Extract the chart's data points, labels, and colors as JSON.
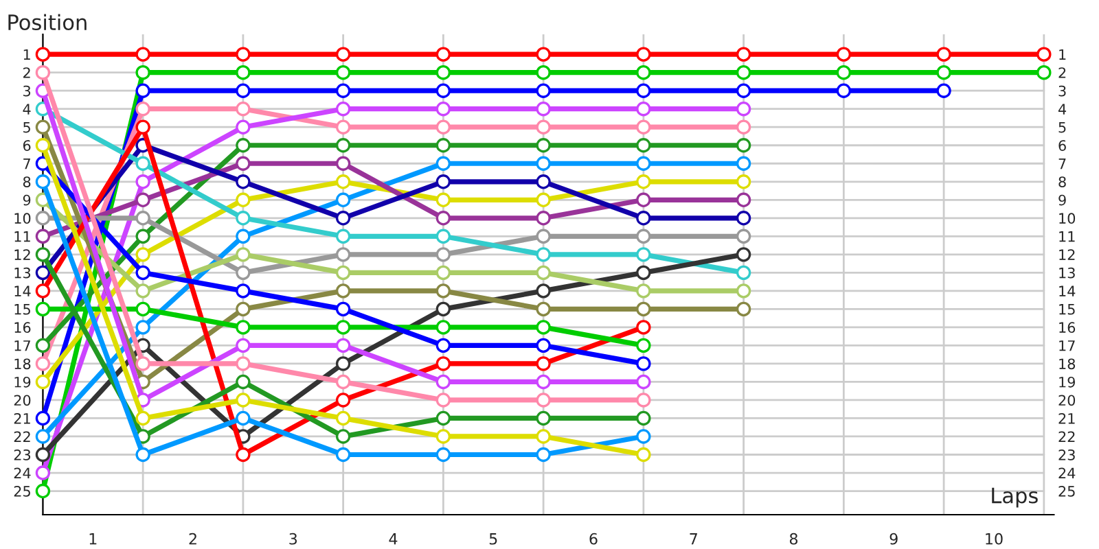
{
  "chart_data": {
    "type": "line",
    "xlabel": "Laps",
    "ylabel": "Position",
    "x": [
      0,
      1,
      2,
      3,
      4,
      5,
      6,
      7,
      8,
      9,
      10
    ],
    "xlim": [
      0,
      10.1
    ],
    "xticks": [
      {
        "value": 0,
        "label": null
      },
      {
        "value": 0.5,
        "label": "1"
      },
      {
        "value": 1,
        "label": null
      },
      {
        "value": 1.5,
        "label": "2"
      },
      {
        "value": 2,
        "label": null
      },
      {
        "value": 2.5,
        "label": "3"
      },
      {
        "value": 3,
        "label": null
      },
      {
        "value": 3.5,
        "label": "4"
      },
      {
        "value": 4,
        "label": null
      },
      {
        "value": 4.5,
        "label": "5"
      },
      {
        "value": 5,
        "label": null
      },
      {
        "value": 5.5,
        "label": "6"
      },
      {
        "value": 6,
        "label": null
      },
      {
        "value": 6.5,
        "label": "7"
      },
      {
        "value": 7,
        "label": null
      },
      {
        "value": 7.5,
        "label": "8"
      },
      {
        "value": 8,
        "label": null
      },
      {
        "value": 8.5,
        "label": "9"
      },
      {
        "value": 9,
        "label": null
      },
      {
        "value": 9.5,
        "label": "10"
      },
      {
        "value": 10,
        "label": null
      }
    ],
    "ylim": [
      26.3,
      -0.1
    ],
    "yticks": [
      1,
      2,
      3,
      4,
      5,
      6,
      7,
      8,
      9,
      10,
      11,
      12,
      13,
      14,
      15,
      16,
      17,
      18,
      19,
      20,
      21,
      22,
      23,
      24,
      25
    ],
    "y2lim": [
      26.3,
      -0.1
    ],
    "y2ticks": [
      1,
      2,
      3,
      4,
      5,
      6,
      7,
      8,
      9,
      10,
      11,
      12,
      13,
      14,
      15,
      16,
      17,
      18,
      19,
      20,
      21,
      22,
      23,
      24,
      25
    ],
    "grid": true,
    "legend": false,
    "marker": "circle",
    "line_style": "solid",
    "series": [
      {
        "color": "#ff0000",
        "values": [
          1,
          1,
          1,
          1,
          1,
          1,
          1,
          1,
          1,
          1,
          1
        ]
      },
      {
        "color": "#00cc00",
        "values": [
          25,
          2,
          2,
          2,
          2,
          2,
          2,
          2,
          2,
          2,
          2
        ]
      },
      {
        "color": "#0000ff",
        "values": [
          21,
          3,
          3,
          3,
          3,
          3,
          3,
          3,
          3,
          3,
          null
        ]
      },
      {
        "color": "#ff88aa",
        "values": [
          18,
          4,
          4,
          5,
          5,
          5,
          5,
          5,
          null,
          null,
          null
        ]
      },
      {
        "color": "#cc44ff",
        "values": [
          24,
          8,
          5,
          4,
          4,
          4,
          4,
          4,
          null,
          null,
          null
        ]
      },
      {
        "color": "#229922",
        "values": [
          17,
          11,
          6,
          6,
          6,
          6,
          6,
          6,
          null,
          null,
          null
        ]
      },
      {
        "color": "#0099ff",
        "values": [
          22,
          16,
          11,
          9,
          7,
          7,
          7,
          7,
          null,
          null,
          null
        ]
      },
      {
        "color": "#dddd00",
        "values": [
          19,
          12,
          9,
          8,
          9,
          9,
          8,
          8,
          null,
          null,
          null
        ]
      },
      {
        "color": "#993399",
        "values": [
          11,
          9,
          7,
          7,
          10,
          10,
          9,
          9,
          null,
          null,
          null
        ]
      },
      {
        "color": "#1100aa",
        "values": [
          13,
          6,
          8,
          10,
          8,
          8,
          10,
          10,
          null,
          null,
          null
        ]
      },
      {
        "color": "#999999",
        "values": [
          10,
          10,
          13,
          12,
          12,
          11,
          11,
          11,
          null,
          null,
          null
        ]
      },
      {
        "color": "#33cccc",
        "values": [
          4,
          7,
          10,
          11,
          11,
          12,
          12,
          13,
          null,
          null,
          null
        ]
      },
      {
        "color": "#333333",
        "values": [
          23,
          17,
          22,
          18,
          15,
          14,
          13,
          12,
          null,
          null,
          null
        ]
      },
      {
        "color": "#aacc66",
        "values": [
          9,
          14,
          12,
          13,
          13,
          13,
          14,
          14,
          null,
          null,
          null
        ]
      },
      {
        "color": "#888844",
        "values": [
          5,
          19,
          15,
          14,
          14,
          15,
          15,
          15,
          null,
          null,
          null
        ]
      },
      {
        "color": "#ff0000",
        "values": [
          14,
          5,
          23,
          20,
          18,
          18,
          16,
          null,
          null,
          null,
          null
        ]
      },
      {
        "color": "#00cc00",
        "values": [
          15,
          15,
          16,
          16,
          16,
          16,
          17,
          null,
          null,
          null,
          null
        ]
      },
      {
        "color": "#0000ff",
        "values": [
          7,
          13,
          14,
          15,
          17,
          17,
          18,
          null,
          null,
          null,
          null
        ]
      },
      {
        "color": "#cc44ff",
        "values": [
          3,
          20,
          17,
          17,
          19,
          19,
          19,
          null,
          null,
          null,
          null
        ]
      },
      {
        "color": "#ff88aa",
        "values": [
          2,
          18,
          18,
          19,
          20,
          20,
          20,
          null,
          null,
          null,
          null
        ]
      },
      {
        "color": "#229922",
        "values": [
          12,
          22,
          19,
          22,
          21,
          21,
          21,
          null,
          null,
          null,
          null
        ]
      },
      {
        "color": "#0099ff",
        "values": [
          8,
          23,
          21,
          23,
          23,
          23,
          22,
          null,
          null,
          null,
          null
        ]
      },
      {
        "color": "#dddd00",
        "values": [
          6,
          21,
          20,
          21,
          22,
          22,
          23,
          null,
          null,
          null,
          null
        ]
      }
    ]
  }
}
